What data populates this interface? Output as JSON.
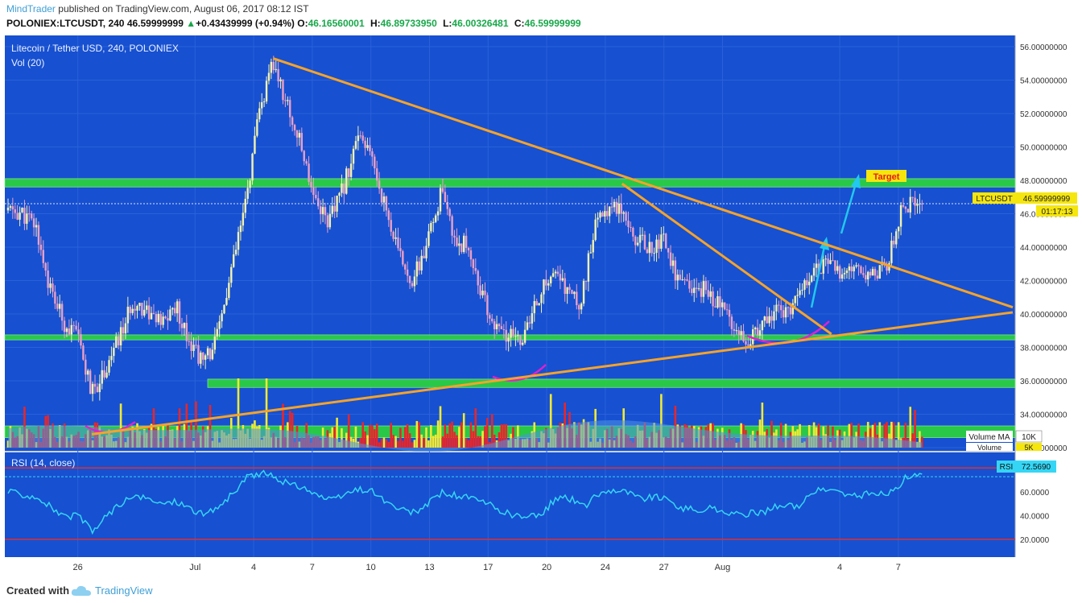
{
  "header": {
    "author": "MindTrader",
    "published_text": "published on TradingView.com, August 06, 2017 08:12 IST",
    "symbol": "POLONIEX:LTCUSDT, 240",
    "last_price": "46.59999999",
    "change": "+0.43439999 (+0.94%)",
    "open_label": "O:",
    "open": "46.16560001",
    "high_label": "H:",
    "high": "46.89733950",
    "low_label": "L:",
    "low": "46.00326481",
    "close_label": "C:",
    "close": "46.59999999"
  },
  "chart_labels": {
    "main_title": "Litecoin / Tether USD, 240, POLONIEX",
    "volume_title": "Vol (20)",
    "rsi_title": "RSI (14, close)",
    "target_label": "Target",
    "price_tag_symbol": "LTCUSDT",
    "price_tag_value": "46.59999999",
    "countdown": "01:17:13",
    "volume_ma_label": "Volume MA",
    "volume_ma_value": "10K",
    "volume_label": "Volume",
    "volume_value": "5K",
    "rsi_tag_label": "RSI",
    "rsi_tag_value": "72.5690"
  },
  "footer": {
    "created_with": "Created with",
    "brand": "TradingView"
  },
  "colors": {
    "background": "#1750d0",
    "grid": "#2a62da",
    "candle_up": "#f2f2b0",
    "candle_down": "#e8a0c8",
    "trendline": "#f5a32a",
    "zone": "#2bd63a",
    "volume_up": "#f0ea34",
    "volume_down": "#e8262a",
    "volume_ma": "#4c92e6",
    "rsi_line": "#35d6f5",
    "rsi_bound": "#e03030",
    "arrow": "#22c8ee",
    "curve": "#e020d0",
    "target_bg": "#f5e60e",
    "target_text": "#e81818"
  },
  "chart_data": {
    "type": "candlestick",
    "symbol": "POLONIEX:LTCUSDT",
    "interval": "240",
    "price_axis": {
      "min": 32,
      "max": 56,
      "ticks": [
        "56.00000000",
        "54.00000000",
        "52.00000000",
        "50.00000000",
        "48.00000000",
        "46.00000000",
        "44.00000000",
        "42.00000000",
        "40.00000000",
        "38.00000000",
        "36.00000000",
        "34.00000000",
        "32.00000000"
      ]
    },
    "x_ticks": [
      "26",
      "Jul",
      "4",
      "7",
      "10",
      "13",
      "17",
      "20",
      "24",
      "27",
      "Aug",
      "4",
      "7"
    ],
    "close_path": [
      {
        "day": 0,
        "price": 46.2
      },
      {
        "day": 1,
        "price": 46.0
      },
      {
        "day": 2,
        "price": 45.2
      },
      {
        "day": 3,
        "price": 41.5
      },
      {
        "day": 4,
        "price": 39.5
      },
      {
        "day": 5,
        "price": 38.6
      },
      {
        "day": 6,
        "price": 35.2
      },
      {
        "day": 7,
        "price": 36.8
      },
      {
        "day": 8,
        "price": 38.6
      },
      {
        "day": 9,
        "price": 40.8
      },
      {
        "day": 10,
        "price": 40.2
      },
      {
        "day": 11,
        "price": 39.3
      },
      {
        "day": 12,
        "price": 40.5
      },
      {
        "day": 13,
        "price": 38.5
      },
      {
        "day": 14,
        "price": 37.0
      },
      {
        "day": 15,
        "price": 38.6
      },
      {
        "day": 16,
        "price": 42.5
      },
      {
        "day": 17,
        "price": 46.5
      },
      {
        "day": 18,
        "price": 52.0
      },
      {
        "day": 19,
        "price": 55.0
      },
      {
        "day": 20,
        "price": 52.5
      },
      {
        "day": 21,
        "price": 50.0
      },
      {
        "day": 22,
        "price": 47.0
      },
      {
        "day": 23,
        "price": 45.5
      },
      {
        "day": 24,
        "price": 47.5
      },
      {
        "day": 25,
        "price": 50.5
      },
      {
        "day": 26,
        "price": 49.5
      },
      {
        "day": 27,
        "price": 46.5
      },
      {
        "day": 28,
        "price": 43.5
      },
      {
        "day": 29,
        "price": 42.0
      },
      {
        "day": 30,
        "price": 44.0
      },
      {
        "day": 31,
        "price": 47.2
      },
      {
        "day": 32,
        "price": 44.5
      },
      {
        "day": 33,
        "price": 44.0
      },
      {
        "day": 34,
        "price": 41.0
      },
      {
        "day": 35,
        "price": 39.0
      },
      {
        "day": 36,
        "price": 38.6
      },
      {
        "day": 37,
        "price": 38.6
      },
      {
        "day": 38,
        "price": 41.0
      },
      {
        "day": 39,
        "price": 42.5
      },
      {
        "day": 40,
        "price": 41.5
      },
      {
        "day": 41,
        "price": 40.5
      },
      {
        "day": 42,
        "price": 45.0
      },
      {
        "day": 43,
        "price": 46.5
      },
      {
        "day": 44,
        "price": 46.5
      },
      {
        "day": 45,
        "price": 44.5
      },
      {
        "day": 46,
        "price": 44.0
      },
      {
        "day": 47,
        "price": 44.5
      },
      {
        "day": 48,
        "price": 42.0
      },
      {
        "day": 49,
        "price": 41.3
      },
      {
        "day": 50,
        "price": 41.5
      },
      {
        "day": 51,
        "price": 40.5
      },
      {
        "day": 52,
        "price": 39.5
      },
      {
        "day": 53,
        "price": 38.6
      },
      {
        "day": 54,
        "price": 39.0
      },
      {
        "day": 55,
        "price": 40.5
      },
      {
        "day": 56,
        "price": 39.8
      },
      {
        "day": 57,
        "price": 42.0
      },
      {
        "day": 58,
        "price": 43.0
      },
      {
        "day": 59,
        "price": 42.8
      },
      {
        "day": 60,
        "price": 42.2
      },
      {
        "day": 61,
        "price": 42.6
      },
      {
        "day": 62,
        "price": 42.5
      },
      {
        "day": 63,
        "price": 43.0
      },
      {
        "day": 64,
        "price": 46.2
      },
      {
        "day": 65,
        "price": 46.6
      }
    ],
    "rsi": {
      "period": 14,
      "ticks": [
        "80.0000",
        "60.0000",
        "40.0000",
        "20.0000"
      ],
      "overbought": 80,
      "oversold": 20,
      "last": 72.569,
      "values": [
        60,
        58,
        56,
        48,
        38,
        40,
        26,
        40,
        50,
        56,
        53,
        50,
        52,
        46,
        40,
        48,
        58,
        72,
        76,
        72,
        66,
        64,
        57,
        52,
        58,
        62,
        60,
        50,
        44,
        42,
        52,
        60,
        56,
        54,
        50,
        44,
        40,
        38,
        42,
        55,
        54,
        48,
        58,
        62,
        60,
        54,
        56,
        52,
        46,
        44,
        46,
        43,
        40,
        42,
        44,
        50,
        46,
        58,
        62,
        60,
        56,
        58,
        58,
        60,
        74,
        72.57
      ]
    },
    "volume": {
      "ma_label": "Volume MA",
      "ma_value": "10K",
      "last_label": "Volume",
      "last_value": "5K"
    },
    "annotations": [
      {
        "type": "horizontal_zone",
        "label": "resistance zone",
        "price": 47.8
      },
      {
        "type": "horizontal_zone",
        "label": "support zone",
        "price": 38.6
      },
      {
        "type": "horizontal_zone",
        "label": "lower zone",
        "price": 35.8
      },
      {
        "type": "horizontal_zone",
        "label": "base zone",
        "price": 33.0
      },
      {
        "type": "trendline",
        "label": "upper descending",
        "from": {
          "day": 19,
          "price": 55.3
        },
        "to": {
          "day": 72,
          "price": 40.4
        }
      },
      {
        "type": "trendline",
        "label": "lower ascending",
        "from": {
          "day": 6,
          "price": 32.8
        },
        "to": {
          "day": 72,
          "price": 40.1
        }
      },
      {
        "type": "trendline",
        "label": "steep descending",
        "from": {
          "day": 44,
          "price": 47.8
        },
        "to": {
          "day": 59,
          "price": 38.8
        }
      },
      {
        "type": "target",
        "label": "Target",
        "price": 48.0
      }
    ]
  }
}
